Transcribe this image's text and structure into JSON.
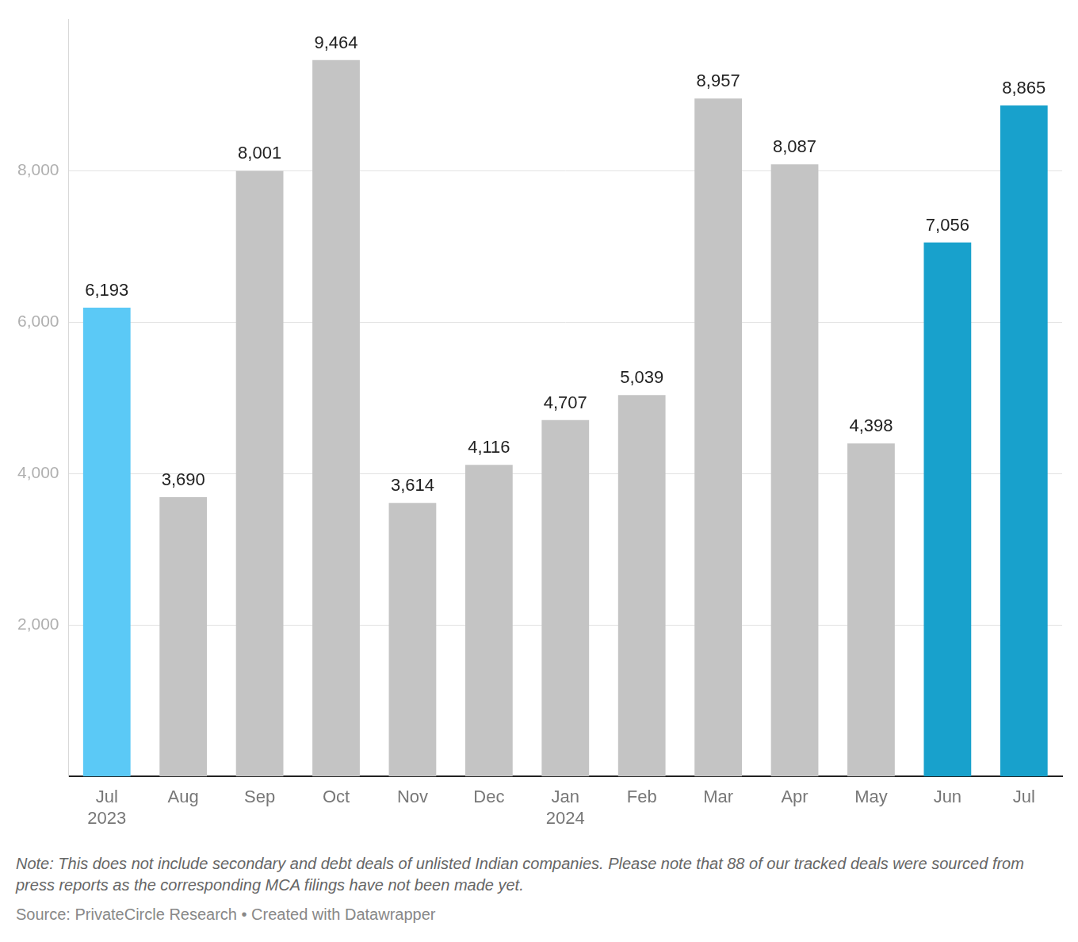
{
  "chart_data": {
    "type": "bar",
    "categories": [
      "Jul 2023",
      "Aug",
      "Sep",
      "Oct",
      "Nov",
      "Dec",
      "Jan 2024",
      "Feb",
      "Mar",
      "Apr",
      "May",
      "Jun",
      "Jul"
    ],
    "values": [
      6193,
      3690,
      8001,
      9464,
      3614,
      4116,
      4707,
      5039,
      8957,
      8087,
      4398,
      7056,
      8865
    ],
    "value_labels": [
      "6,193",
      "3,690",
      "8,001",
      "9,464",
      "3,614",
      "4,116",
      "4,707",
      "5,039",
      "8,957",
      "8,087",
      "4,398",
      "7,056",
      "8,865"
    ],
    "colors": [
      "#5bc9f6",
      "#c4c4c4",
      "#c4c4c4",
      "#c4c4c4",
      "#c4c4c4",
      "#c4c4c4",
      "#c4c4c4",
      "#c4c4c4",
      "#c4c4c4",
      "#c4c4c4",
      "#c4c4c4",
      "#18a1cc",
      "#18a1cc"
    ],
    "ylim": [
      0,
      10000
    ],
    "yticks": [
      {
        "value": 2000,
        "label": "2,000"
      },
      {
        "value": 4000,
        "label": "4,000"
      },
      {
        "value": 6000,
        "label": "6,000"
      },
      {
        "value": 8000,
        "label": "8,000"
      }
    ],
    "grid": true,
    "data_labels": true,
    "note": "Note: This does not include secondary and debt deals of unlisted Indian companies. Please note that 88 of our tracked deals were sourced from press reports as the corresponding MCA filings have not been made yet.",
    "source": "Source: PrivateCircle Research • Created with Datawrapper"
  }
}
